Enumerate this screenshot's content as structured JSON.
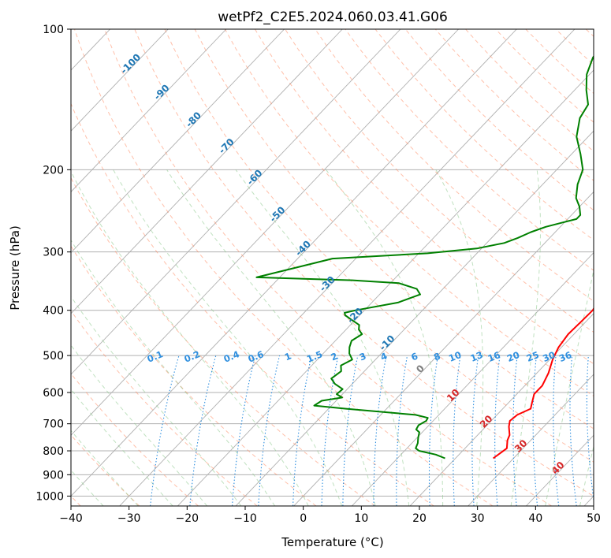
{
  "chart_data": {
    "type": "line",
    "title": "wetPf2_C2E5.2024.060.03.41.G06",
    "xlabel": "Temperature (°C)",
    "ylabel": "Pressure (hPa)",
    "xlim": [
      -40,
      50
    ],
    "ylim": [
      1050,
      100
    ],
    "y_scale": "log",
    "x_ticks": [
      "−40",
      "−30",
      "−20",
      "−10",
      "0",
      "10",
      "20",
      "30",
      "40",
      "50"
    ],
    "y_ticks": [
      "100",
      "200",
      "300",
      "400",
      "500",
      "600",
      "700",
      "800",
      "900",
      "1000"
    ],
    "grid": true,
    "skew": "skew-T log-p",
    "series": [
      {
        "color": "#ff0000",
        "points": [
          [
            26.5,
            830
          ],
          [
            27.2,
            790
          ],
          [
            26.0,
            760
          ],
          [
            25.5,
            740
          ],
          [
            24.0,
            710
          ],
          [
            23.2,
            690
          ],
          [
            23.5,
            670
          ],
          [
            24.8,
            650
          ],
          [
            24.0,
            630
          ],
          [
            23.0,
            605
          ],
          [
            23.0,
            580
          ],
          [
            22.0,
            545
          ],
          [
            20.5,
            510
          ],
          [
            19.5,
            480
          ],
          [
            19.0,
            450
          ],
          [
            19.2,
            420
          ],
          [
            19.3,
            400
          ],
          [
            18.8,
            385
          ],
          [
            17.5,
            370
          ],
          [
            16.0,
            350
          ],
          [
            14.3,
            320
          ],
          [
            12.5,
            300
          ],
          [
            9.5,
            275
          ],
          [
            8.8,
            268
          ],
          [
            7.0,
            250
          ],
          [
            5.3,
            235
          ],
          [
            3.5,
            220
          ],
          [
            1.8,
            205
          ],
          [
            -0.5,
            185
          ],
          [
            -3.0,
            165
          ],
          [
            -5.5,
            150
          ],
          [
            -8.0,
            135
          ],
          [
            -9.8,
            125
          ],
          [
            -9.8,
            115
          ],
          [
            -8.0,
            108
          ],
          [
            -5.8,
            104
          ],
          [
            -3.5,
            100
          ]
        ]
      },
      {
        "color": "#008000",
        "points": [
          [
            18.2,
            830
          ],
          [
            16.0,
            815
          ],
          [
            12.5,
            800
          ],
          [
            11.5,
            790
          ],
          [
            11.0,
            770
          ],
          [
            10.2,
            750
          ],
          [
            9.5,
            730
          ],
          [
            8.5,
            720
          ],
          [
            8.2,
            705
          ],
          [
            8.8,
            690
          ],
          [
            8.6,
            680
          ],
          [
            6.0,
            670
          ],
          [
            -7.0,
            650
          ],
          [
            -13.0,
            640
          ],
          [
            -12.5,
            625
          ],
          [
            -9.5,
            615
          ],
          [
            -11.0,
            605
          ],
          [
            -10.8,
            590
          ],
          [
            -13.0,
            575
          ],
          [
            -14.5,
            560
          ],
          [
            -14.0,
            540
          ],
          [
            -15.0,
            525
          ],
          [
            -14.0,
            510
          ],
          [
            -15.5,
            495
          ],
          [
            -16.5,
            480
          ],
          [
            -17.2,
            465
          ],
          [
            -16.5,
            450
          ],
          [
            -17.8,
            440
          ],
          [
            -18.5,
            430
          ],
          [
            -20.5,
            420
          ],
          [
            -22.5,
            410
          ],
          [
            -23.0,
            405
          ],
          [
            -21.5,
            400
          ],
          [
            -15.5,
            385
          ],
          [
            -13.0,
            370
          ],
          [
            -14.5,
            360
          ],
          [
            -18.5,
            350
          ],
          [
            -27.0,
            345
          ],
          [
            -44.0,
            340
          ],
          [
            -34.0,
            310
          ],
          [
            -18.5,
            302
          ],
          [
            -10.8,
            295
          ],
          [
            -7.0,
            287
          ],
          [
            -5.5,
            280
          ],
          [
            -4.2,
            272
          ],
          [
            -2.5,
            265
          ],
          [
            -0.5,
            260
          ],
          [
            1.5,
            255
          ],
          [
            1.5,
            250
          ],
          [
            0.0,
            240
          ],
          [
            -2.0,
            230
          ],
          [
            -4.0,
            215
          ],
          [
            -5.5,
            200
          ],
          [
            -8.5,
            185
          ],
          [
            -12.0,
            170
          ],
          [
            -14.5,
            155
          ],
          [
            -15.3,
            145
          ],
          [
            -18.0,
            135
          ],
          [
            -20.5,
            125
          ],
          [
            -22.2,
            115
          ],
          [
            -22.7,
            108
          ],
          [
            -22.2,
            104
          ],
          [
            -21.5,
            100
          ]
        ]
      }
    ],
    "dry_adiabat_labels": [
      "-100",
      "-90",
      "-80",
      "-70",
      "-60",
      "-50",
      "-40",
      "-30",
      "-20",
      "-10",
      "0",
      "10",
      "20",
      "30",
      "40"
    ],
    "mixing_ratio_labels": [
      "0.1",
      "0.2",
      "0.4",
      "0.6",
      "1",
      "1.5",
      "2",
      "3",
      "4",
      "6",
      "8",
      "10",
      "13",
      "16",
      "20",
      "25",
      "30",
      "36"
    ],
    "colors": {
      "temperature": "#ff0000",
      "dewpoint": "#008000",
      "isotherm": "#b0b0b0",
      "isobar": "#b0b0b0",
      "dry_adiabat": "#ff8c64",
      "moist_adiabat": "#8cc88c",
      "mixing_ratio": "#2f8fdf",
      "cold_label": "#1f77b4",
      "warm_label": "#d62728",
      "zero_label": "#808080"
    }
  }
}
